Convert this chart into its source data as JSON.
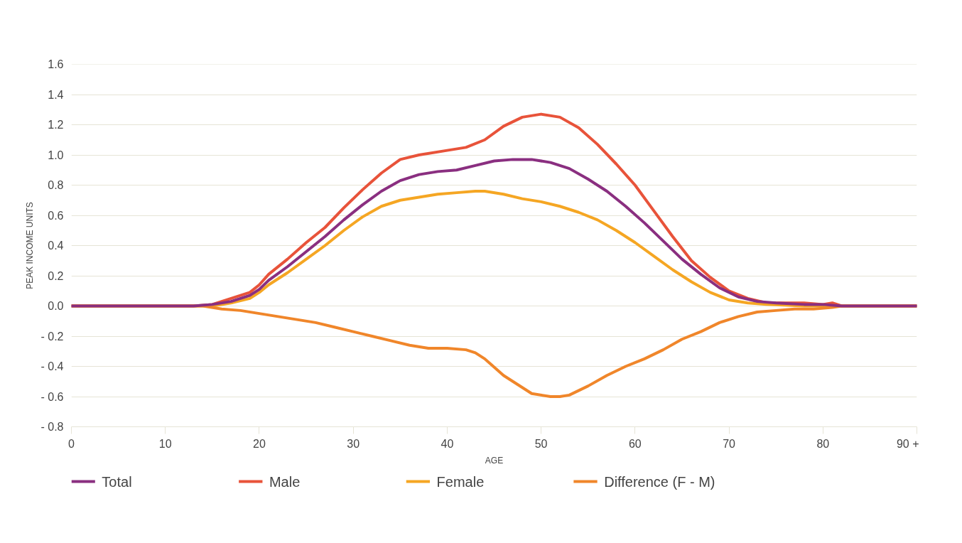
{
  "chart_data": {
    "type": "line",
    "xlabel": "AGE",
    "ylabel": "PEAK INCOME UNITS",
    "xlim": [
      0,
      90
    ],
    "ylim": [
      -0.8,
      1.6
    ],
    "xticks": [
      0,
      10,
      20,
      30,
      40,
      50,
      60,
      70,
      80,
      {
        "value": 90,
        "label": "90 +"
      }
    ],
    "yticks": [
      {
        "value": -0.8,
        "label": "- 0.8"
      },
      {
        "value": -0.6,
        "label": "- 0.6"
      },
      {
        "value": -0.4,
        "label": "- 0.4"
      },
      {
        "value": -0.2,
        "label": "- 0.2"
      },
      {
        "value": 0,
        "label": "0.0"
      },
      0.2,
      0.4,
      0.6,
      0.8,
      {
        "value": 1.0,
        "label": "1.0"
      },
      1.2,
      1.4,
      1.6
    ],
    "grid": "y",
    "legend": "bottom",
    "marker": "none",
    "line_style": "solid",
    "series": [
      {
        "name": "Total",
        "color": "#8a2f80",
        "x": [
          0,
          13,
          15,
          17,
          19,
          20,
          21,
          23,
          25,
          27,
          29,
          31,
          33,
          35,
          37,
          39,
          41,
          43,
          45,
          47,
          49,
          51,
          53,
          55,
          57,
          59,
          61,
          63,
          65,
          67,
          69,
          71,
          73,
          75,
          78,
          80,
          82,
          90
        ],
        "values": [
          0,
          0,
          0.01,
          0.03,
          0.07,
          0.11,
          0.17,
          0.26,
          0.36,
          0.46,
          0.57,
          0.67,
          0.76,
          0.83,
          0.87,
          0.89,
          0.9,
          0.93,
          0.96,
          0.97,
          0.97,
          0.95,
          0.91,
          0.84,
          0.76,
          0.66,
          0.55,
          0.43,
          0.31,
          0.21,
          0.12,
          0.06,
          0.03,
          0.02,
          0.01,
          0.01,
          0,
          0
        ]
      },
      {
        "name": "Male",
        "color": "#e8533a",
        "x": [
          0,
          13,
          15,
          17,
          19,
          20,
          21,
          23,
          25,
          27,
          29,
          31,
          33,
          35,
          37,
          40,
          42,
          44,
          46,
          48,
          50,
          52,
          54,
          56,
          58,
          60,
          62,
          64,
          66,
          68,
          70,
          72,
          74,
          76,
          78,
          80,
          81,
          82,
          90
        ],
        "values": [
          0,
          0,
          0.01,
          0.05,
          0.09,
          0.14,
          0.21,
          0.31,
          0.42,
          0.52,
          0.65,
          0.77,
          0.88,
          0.97,
          1.0,
          1.03,
          1.05,
          1.1,
          1.19,
          1.25,
          1.27,
          1.25,
          1.18,
          1.07,
          0.94,
          0.8,
          0.63,
          0.46,
          0.3,
          0.19,
          0.1,
          0.05,
          0.02,
          0.02,
          0.02,
          0.01,
          0.02,
          0,
          0
        ]
      },
      {
        "name": "Female",
        "color": "#f5a623",
        "x": [
          0,
          15,
          17,
          19,
          20,
          21,
          23,
          25,
          27,
          29,
          31,
          33,
          35,
          37,
          39,
          41,
          43,
          44,
          46,
          48,
          50,
          52,
          54,
          56,
          58,
          60,
          62,
          64,
          66,
          68,
          70,
          72,
          74,
          78,
          82,
          90
        ],
        "values": [
          0,
          0,
          0.02,
          0.05,
          0.09,
          0.14,
          0.22,
          0.31,
          0.4,
          0.5,
          0.59,
          0.66,
          0.7,
          0.72,
          0.74,
          0.75,
          0.76,
          0.76,
          0.74,
          0.71,
          0.69,
          0.66,
          0.62,
          0.57,
          0.5,
          0.42,
          0.33,
          0.24,
          0.16,
          0.09,
          0.04,
          0.02,
          0.01,
          0,
          0,
          0
        ]
      },
      {
        "name": "Difference (F - M)",
        "color": "#f0862a",
        "x": [
          0,
          14,
          16,
          18,
          20,
          22,
          24,
          26,
          28,
          30,
          32,
          34,
          36,
          38,
          40,
          42,
          43,
          44,
          46,
          48,
          49,
          51,
          52,
          53,
          55,
          57,
          59,
          61,
          63,
          65,
          67,
          69,
          71,
          73,
          75,
          77,
          79,
          81,
          82,
          90
        ],
        "values": [
          0,
          0,
          -0.02,
          -0.03,
          -0.05,
          -0.07,
          -0.09,
          -0.11,
          -0.14,
          -0.17,
          -0.2,
          -0.23,
          -0.26,
          -0.28,
          -0.28,
          -0.29,
          -0.31,
          -0.35,
          -0.46,
          -0.54,
          -0.58,
          -0.6,
          -0.6,
          -0.59,
          -0.53,
          -0.46,
          -0.4,
          -0.35,
          -0.29,
          -0.22,
          -0.17,
          -0.11,
          -0.07,
          -0.04,
          -0.03,
          -0.02,
          -0.02,
          -0.01,
          0,
          0
        ]
      }
    ]
  }
}
